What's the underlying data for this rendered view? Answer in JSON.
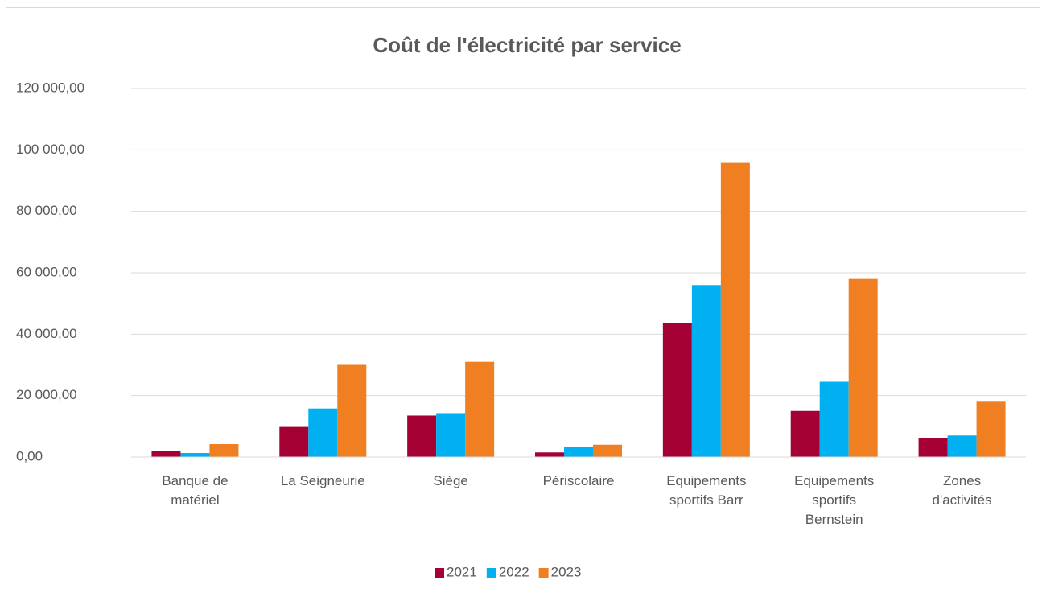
{
  "chart_data": {
    "type": "bar",
    "title": "Coût de l'électricité par service",
    "categories": [
      "Banque de matériel",
      "La Seigneurie",
      "Siège",
      "Périscolaire",
      "Equipements sportifs Barr",
      "Equipements sportifs Bernstein",
      "Zones d'activités"
    ],
    "series": [
      {
        "name": "2021",
        "color": "#a50034",
        "values": [
          1900,
          9800,
          13500,
          1500,
          43500,
          15000,
          6200
        ]
      },
      {
        "name": "2022",
        "color": "#00b0f0",
        "values": [
          1300,
          15800,
          14300,
          3300,
          56000,
          24500,
          7000
        ]
      },
      {
        "name": "2023",
        "color": "#f07f22",
        "values": [
          4200,
          30000,
          31000,
          4000,
          96000,
          58000,
          18000
        ]
      }
    ],
    "ylim": [
      0,
      120000
    ],
    "yticks": [
      {
        "value": 0,
        "label": "0,00"
      },
      {
        "value": 20000,
        "label": "20 000,00"
      },
      {
        "value": 40000,
        "label": "40 000,00"
      },
      {
        "value": 60000,
        "label": "60 000,00"
      },
      {
        "value": 80000,
        "label": "80 000,00"
      },
      {
        "value": 100000,
        "label": "100 000,00"
      },
      {
        "value": 120000,
        "label": "120 000,00"
      }
    ],
    "grid": true,
    "legend": "bottom"
  }
}
